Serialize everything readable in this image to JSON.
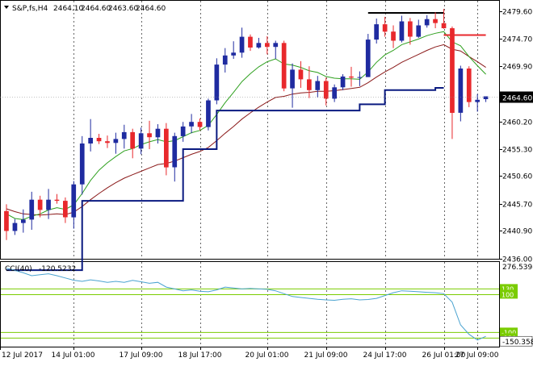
{
  "window": {
    "title": "S&P,fs,H4",
    "ohlc": [
      "2464.10",
      "2464.60",
      "2463.60",
      "2464.60"
    ]
  },
  "indicator": {
    "name": "CCI(40)",
    "value": "-120.5232"
  },
  "colors": {
    "bull": "#1f2ba0",
    "bear": "#e8282c",
    "ma_fast": "#2ea01e",
    "ma_slow": "#8b1a1a",
    "stop_line": "#0a1a80",
    "cci_line": "#4aa3d0",
    "cci_level": "#7acc00",
    "grid": "#000000"
  },
  "chart_data": [
    {
      "type": "candlestick",
      "title": "S&P,fs,H4",
      "ylim": [
        2436.0,
        2481.0
      ],
      "y_ticks": [
        "2479.60",
        "2474.70",
        "2469.90",
        "2465.00",
        "2460.20",
        "2455.30",
        "2450.60",
        "2445.70",
        "2440.90",
        "2436.00"
      ],
      "x_ticks": [
        "12 Jul 2017",
        "14 Jul 01:00",
        "17 Jul 09:00",
        "18 Jul 17:00",
        "20 Jul 01:00",
        "21 Jul 09:00",
        "24 Jul 17:00",
        "26 Jul 01:00",
        "27 Jul 09:00"
      ],
      "current_price_label": "2464.60",
      "current_price": 2464.6,
      "candles": [
        [
          2444.4,
          2445.6,
          2439.3,
          2440.9
        ],
        [
          2440.9,
          2443.0,
          2440.2,
          2442.3
        ],
        [
          2442.3,
          2444.7,
          2440.6,
          2442.9
        ],
        [
          2442.9,
          2447.8,
          2441.1,
          2446.4
        ],
        [
          2446.4,
          2447.1,
          2443.3,
          2444.6
        ],
        [
          2444.6,
          2448.3,
          2443.0,
          2446.4
        ],
        [
          2446.4,
          2447.4,
          2445.7,
          2446.2
        ],
        [
          2446.2,
          2446.8,
          2442.3,
          2443.3
        ],
        [
          2443.3,
          2449.7,
          2441.3,
          2449.1
        ],
        [
          2449.1,
          2457.6,
          2447.3,
          2456.3
        ],
        [
          2456.3,
          2460.6,
          2454.9,
          2457.3
        ],
        [
          2457.3,
          2458.0,
          2456.2,
          2456.7
        ],
        [
          2456.7,
          2457.7,
          2455.5,
          2456.4
        ],
        [
          2456.4,
          2458.2,
          2454.5,
          2457.1
        ],
        [
          2457.1,
          2459.6,
          2455.4,
          2458.3
        ],
        [
          2458.3,
          2458.9,
          2453.7,
          2455.4
        ],
        [
          2455.4,
          2459.1,
          2454.4,
          2458.1
        ],
        [
          2458.1,
          2460.3,
          2455.3,
          2457.4
        ],
        [
          2457.4,
          2459.7,
          2456.3,
          2458.9
        ],
        [
          2458.9,
          2459.9,
          2450.7,
          2452.1
        ],
        [
          2452.1,
          2458.2,
          2449.6,
          2457.6
        ],
        [
          2457.6,
          2460.1,
          2456.6,
          2459.3
        ],
        [
          2459.3,
          2461.5,
          2458.1,
          2460.1
        ],
        [
          2460.1,
          2460.7,
          2458.6,
          2459.2
        ],
        [
          2459.2,
          2464.2,
          2458.6,
          2463.9
        ],
        [
          2463.9,
          2471.3,
          2463.2,
          2470.2
        ],
        [
          2470.2,
          2473.1,
          2468.8,
          2471.8
        ],
        [
          2471.8,
          2474.3,
          2471.2,
          2472.3
        ],
        [
          2472.3,
          2476.7,
          2471.4,
          2475.1
        ],
        [
          2475.1,
          2475.5,
          2472.6,
          2473.2
        ],
        [
          2473.2,
          2474.9,
          2473.0,
          2474.0
        ],
        [
          2474.0,
          2475.2,
          2472.0,
          2473.3
        ],
        [
          2473.3,
          2474.4,
          2471.2,
          2474.0
        ],
        [
          2474.0,
          2474.4,
          2465.5,
          2466.0
        ],
        [
          2466.0,
          2470.4,
          2462.6,
          2469.3
        ],
        [
          2469.3,
          2470.8,
          2466.1,
          2467.6
        ],
        [
          2467.6,
          2469.9,
          2464.3,
          2465.7
        ],
        [
          2465.7,
          2468.2,
          2464.4,
          2467.3
        ],
        [
          2467.3,
          2467.9,
          2463.0,
          2464.2
        ],
        [
          2464.2,
          2466.7,
          2463.6,
          2466.2
        ],
        [
          2466.2,
          2468.5,
          2465.7,
          2468.1
        ],
        [
          2468.1,
          2469.8,
          2466.3,
          2467.9
        ],
        [
          2467.9,
          2469.0,
          2466.4,
          2468.0
        ],
        [
          2468.0,
          2475.6,
          2468.0,
          2474.6
        ],
        [
          2474.6,
          2478.3,
          2473.9,
          2477.3
        ],
        [
          2477.3,
          2478.6,
          2475.1,
          2476.0
        ],
        [
          2476.0,
          2477.1,
          2473.1,
          2474.4
        ],
        [
          2474.4,
          2478.8,
          2474.1,
          2477.8
        ],
        [
          2477.8,
          2478.4,
          2473.7,
          2475.1
        ],
        [
          2475.1,
          2478.1,
          2474.9,
          2477.1
        ],
        [
          2477.1,
          2478.9,
          2476.7,
          2478.2
        ],
        [
          2478.2,
          2479.4,
          2476.6,
          2477.5
        ],
        [
          2477.5,
          2480.0,
          2476.5,
          2476.6
        ],
        [
          2476.6,
          2476.9,
          2457.1,
          2461.7
        ],
        [
          2461.7,
          2470.0,
          2460.2,
          2469.5
        ],
        [
          2469.5,
          2469.9,
          2462.7,
          2463.6
        ],
        [
          2463.6,
          2465.0,
          2461.9,
          2464.0
        ],
        [
          2464.1,
          2464.6,
          2463.6,
          2464.6
        ]
      ],
      "ma_fast": [
        2443.9,
        2443.1,
        2442.9,
        2443.5,
        2443.9,
        2444.6,
        2445.0,
        2444.7,
        2445.5,
        2447.5,
        2449.8,
        2451.6,
        2452.9,
        2454.0,
        2455.0,
        2455.4,
        2456.1,
        2456.6,
        2457.0,
        2456.6,
        2456.8,
        2457.5,
        2458.2,
        2458.6,
        2459.5,
        2461.4,
        2463.5,
        2465.3,
        2467.2,
        2468.6,
        2469.8,
        2470.7,
        2471.2,
        2470.3,
        2470.1,
        2469.7,
        2469.1,
        2468.8,
        2468.1,
        2467.8,
        2467.7,
        2467.7,
        2467.6,
        2468.9,
        2470.6,
        2471.9,
        2472.7,
        2473.7,
        2474.2,
        2474.7,
        2475.3,
        2475.7,
        2476.0,
        2474.2,
        2473.5,
        2471.6,
        2470.0,
        2468.5
      ],
      "ma_slow": [
        2444.8,
        2444.3,
        2443.9,
        2443.8,
        2443.7,
        2443.8,
        2443.9,
        2443.8,
        2444.2,
        2445.2,
        2446.4,
        2447.5,
        2448.5,
        2449.4,
        2450.2,
        2450.8,
        2451.4,
        2452.0,
        2452.6,
        2452.8,
        2453.2,
        2453.8,
        2454.4,
        2454.9,
        2455.6,
        2456.8,
        2458.1,
        2459.3,
        2460.6,
        2461.7,
        2462.7,
        2463.6,
        2464.4,
        2464.6,
        2465.0,
        2465.2,
        2465.3,
        2465.5,
        2465.5,
        2465.6,
        2465.8,
        2466.0,
        2466.2,
        2467.0,
        2468.0,
        2468.9,
        2469.7,
        2470.6,
        2471.3,
        2472.0,
        2472.7,
        2473.3,
        2473.7,
        2472.9,
        2472.6,
        2471.6,
        2470.7,
        2469.7
      ],
      "stop_levels": [
        {
          "from": 0,
          "to": 9,
          "value": 2434.0
        },
        {
          "from": 9,
          "to": 21,
          "value": 2446.2
        },
        {
          "from": 21,
          "to": 25,
          "value": 2455.3
        },
        {
          "from": 25,
          "to": 27,
          "value": 2462.1
        },
        {
          "from": 27,
          "to": 42,
          "value": 2462.1
        },
        {
          "from": 42,
          "to": 45,
          "value": 2463.2
        },
        {
          "from": 45,
          "to": 51,
          "value": 2465.7
        },
        {
          "from": 51,
          "to": 52,
          "value": 2466.1
        }
      ],
      "upper_levels": [
        {
          "from": 43,
          "to": 52,
          "value": 2479.3
        },
        {
          "from": 52,
          "to": 57,
          "value": 2475.4
        }
      ]
    },
    {
      "type": "line",
      "title": "CCI(40) -120.5232",
      "ylim": [
        -175,
        276.5398
      ],
      "y_ticks": [
        "276.5398",
        "-150.3582"
      ],
      "level_labels": [
        "130",
        "100",
        "-100",
        "-130"
      ],
      "levels": [
        130,
        100,
        -100,
        -130
      ],
      "values": [
        240,
        228,
        215,
        200,
        205,
        210,
        200,
        188,
        176,
        170,
        178,
        172,
        165,
        170,
        165,
        175,
        168,
        160,
        165,
        140,
        130,
        120,
        125,
        118,
        115,
        125,
        140,
        135,
        130,
        133,
        130,
        128,
        120,
        105,
        90,
        85,
        80,
        75,
        72,
        70,
        75,
        78,
        72,
        74,
        80,
        95,
        110,
        120,
        118,
        115,
        112,
        110,
        105,
        60,
        -60,
        -110,
        -140,
        -120.5
      ]
    }
  ]
}
